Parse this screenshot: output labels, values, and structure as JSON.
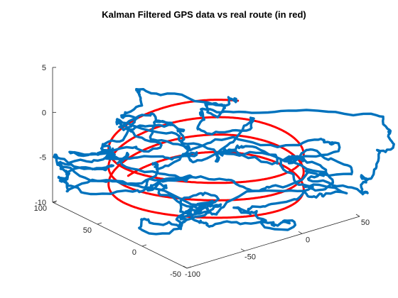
{
  "chart_data": {
    "type": "line3d",
    "title": "Kalman Filtered GPS data vs real route (in red)",
    "xlabel": "",
    "ylabel": "",
    "zlabel": "",
    "xlim": [
      -100,
      50
    ],
    "ylim": [
      -50,
      100
    ],
    "zlim": [
      -10,
      5
    ],
    "x_ticks": [
      "-100",
      "-50",
      "0",
      "50"
    ],
    "y_ticks": [
      "-50",
      "0",
      "50",
      "100"
    ],
    "z_ticks": [
      "-10",
      "-5",
      "0",
      "5"
    ],
    "grid": false,
    "route": {
      "center_x": -25,
      "center_y": 25,
      "radius_x": 68,
      "radius_y": 65,
      "z_top": -2.2,
      "z_bottom": -8.4,
      "loops": 3.2
    },
    "series": [
      {
        "name": "Real route",
        "color": "#ff0000",
        "style": "smooth helix"
      },
      {
        "name": "Kalman filtered GPS",
        "color": "#0072bd",
        "style": "noisy helix"
      }
    ]
  }
}
